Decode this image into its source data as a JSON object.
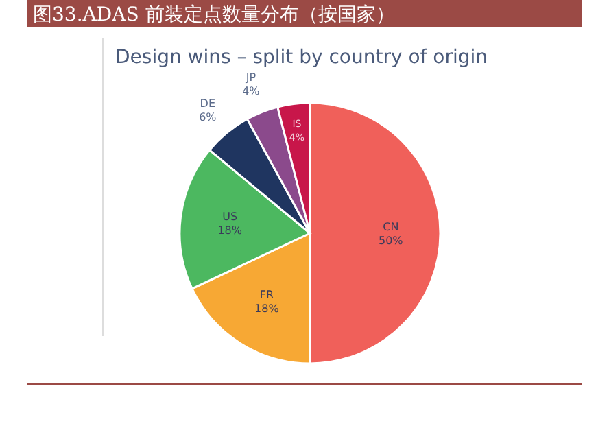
{
  "chart_data": {
    "type": "pie",
    "title": "图33.ADAS 前装定点数量分布（按国家）",
    "subtitle": "Design wins – split by country of origin",
    "categories": [
      "CN",
      "FR",
      "US",
      "DE",
      "JP",
      "IS"
    ],
    "values": [
      50,
      18,
      18,
      6,
      4,
      4
    ],
    "value_labels": [
      "50%",
      "18%",
      "18%",
      "6%",
      "4%",
      "4%"
    ],
    "colors": [
      "#f0605a",
      "#f7a834",
      "#4cb860",
      "#1f3560",
      "#8b4a8c",
      "#c8164a"
    ]
  }
}
